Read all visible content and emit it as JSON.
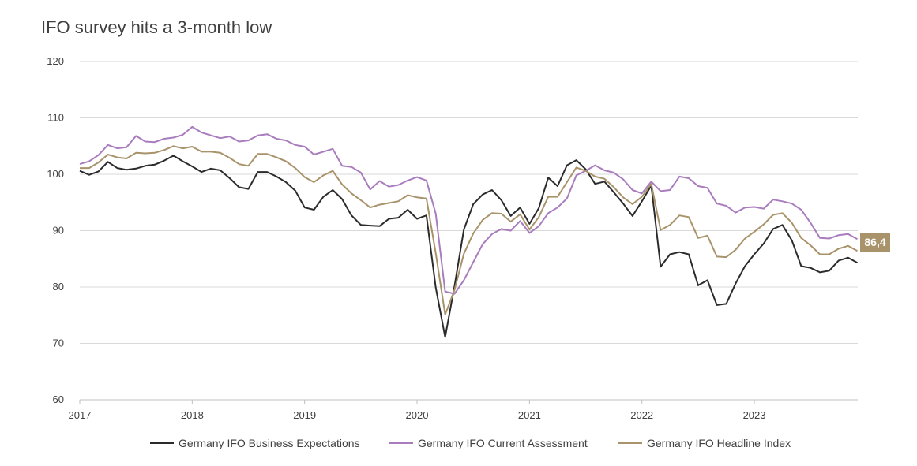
{
  "chart_data": {
    "type": "line",
    "title": "IFO survey hits a 3-month low",
    "xlabel": "",
    "ylabel": "",
    "ylim": [
      60,
      120
    ],
    "yticks": [
      60,
      70,
      80,
      90,
      100,
      110,
      120
    ],
    "xlim": [
      2017.0,
      2023.92
    ],
    "xticks": [
      "2017",
      "2018",
      "2019",
      "2020",
      "2021",
      "2022",
      "2023"
    ],
    "grid": "horizontal",
    "legend_position": "bottom",
    "x_start": "2017-01",
    "x_step": "monthly",
    "end_label": {
      "text": "86,4",
      "color": "#a8936a"
    },
    "series": [
      {
        "name": "Germany IFO Business Expectations",
        "color": "#2b2b2b",
        "values": [
          100.6,
          99.9,
          100.5,
          102.2,
          101.1,
          100.8,
          101.0,
          101.5,
          101.7,
          102.4,
          103.3,
          102.3,
          101.4,
          100.4,
          101.0,
          100.7,
          99.3,
          97.7,
          97.4,
          100.4,
          100.4,
          99.6,
          98.6,
          97.1,
          94.1,
          93.7,
          96.0,
          97.2,
          95.6,
          92.7,
          91.0,
          90.9,
          90.8,
          92.1,
          92.3,
          93.7,
          92.1,
          92.7,
          79.9,
          71.1,
          80.2,
          90.2,
          94.7,
          96.4,
          97.2,
          95.4,
          92.6,
          94.1,
          91.2,
          94.0,
          99.4,
          97.9,
          101.6,
          102.5,
          100.9,
          98.3,
          98.7,
          96.8,
          94.8,
          92.6,
          95.2,
          98.0,
          83.6,
          85.8,
          86.2,
          85.8,
          80.3,
          81.2,
          76.8,
          77.0,
          80.6,
          83.7,
          85.8,
          87.7,
          90.3,
          91.0,
          88.3,
          83.7,
          83.4,
          82.6,
          82.9,
          84.7,
          85.2,
          84.3
        ]
      },
      {
        "name": "Germany IFO Current Assessment",
        "color": "#a97cbe",
        "values": [
          101.8,
          102.3,
          103.4,
          105.2,
          104.6,
          104.8,
          106.8,
          105.8,
          105.7,
          106.3,
          106.5,
          107.0,
          108.4,
          107.4,
          106.9,
          106.4,
          106.7,
          105.8,
          106.0,
          106.9,
          107.1,
          106.3,
          106.0,
          105.2,
          104.9,
          103.5,
          104.0,
          104.5,
          101.5,
          101.3,
          100.3,
          97.3,
          98.8,
          97.8,
          98.1,
          98.9,
          99.5,
          98.9,
          93.0,
          79.2,
          78.8,
          81.2,
          84.4,
          87.6,
          89.4,
          90.3,
          90.0,
          91.7,
          89.6,
          90.8,
          93.1,
          94.1,
          95.7,
          99.8,
          100.6,
          101.6,
          100.7,
          100.3,
          99.1,
          97.2,
          96.6,
          98.7,
          97.0,
          97.2,
          99.6,
          99.3,
          97.9,
          97.6,
          94.8,
          94.4,
          93.2,
          94.1,
          94.2,
          93.9,
          95.5,
          95.2,
          94.8,
          93.7,
          91.4,
          88.7,
          88.6,
          89.2,
          89.4,
          88.5
        ]
      },
      {
        "name": "Germany IFO Headline Index",
        "color": "#a8936a",
        "values": [
          101.1,
          101.1,
          102.1,
          103.5,
          103.0,
          102.8,
          103.8,
          103.7,
          103.8,
          104.3,
          105.0,
          104.6,
          104.9,
          104.0,
          104.0,
          103.8,
          102.9,
          101.8,
          101.5,
          103.6,
          103.6,
          103.0,
          102.3,
          101.1,
          99.5,
          98.6,
          99.8,
          100.6,
          98.2,
          96.6,
          95.4,
          94.1,
          94.6,
          94.9,
          95.2,
          96.3,
          95.9,
          95.7,
          86.0,
          75.1,
          79.5,
          85.9,
          89.5,
          91.9,
          93.1,
          93.0,
          91.6,
          92.9,
          90.2,
          92.4,
          96.0,
          96.0,
          98.6,
          101.2,
          100.6,
          99.6,
          99.2,
          97.7,
          95.9,
          94.7,
          96.0,
          98.3,
          90.1,
          91.0,
          92.7,
          92.4,
          88.7,
          89.1,
          85.4,
          85.3,
          86.6,
          88.6,
          89.8,
          91.1,
          92.8,
          93.1,
          91.4,
          88.7,
          87.4,
          85.8,
          85.8,
          86.8,
          87.3,
          86.4
        ]
      }
    ]
  }
}
